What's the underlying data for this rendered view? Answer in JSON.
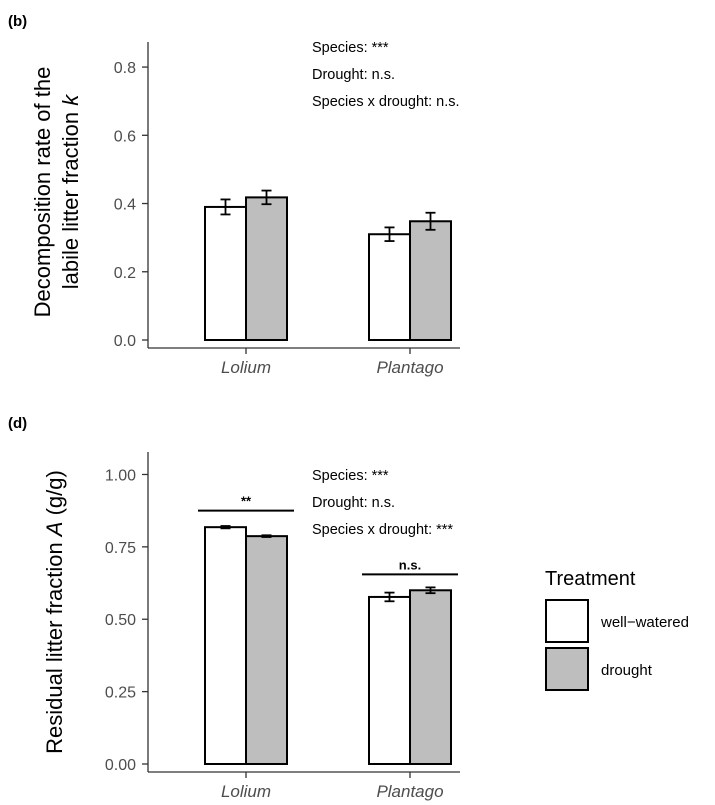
{
  "chart_data": [
    {
      "id": "b",
      "type": "bar",
      "panel_label": "(b)",
      "ylabel_main": "Decomposition rate of the",
      "ylabel_second": "labile litter fraction ",
      "ylabel_symbol": "k",
      "ylabel_unit": "",
      "xlabel": "",
      "ylim": [
        0,
        0.85
      ],
      "yticks": [
        0.0,
        0.2,
        0.4,
        0.6,
        0.8
      ],
      "ytick_labels": [
        "0.0",
        "0.2",
        "0.4",
        "0.6",
        "0.8"
      ],
      "categories": [
        "Lolium",
        "Plantago"
      ],
      "series": [
        {
          "name": "well−watered",
          "values": [
            0.39,
            0.31
          ],
          "errors": [
            0.022,
            0.02
          ]
        },
        {
          "name": "drought",
          "values": [
            0.418,
            0.348
          ],
          "errors": [
            0.02,
            0.025
          ]
        }
      ],
      "stats": [
        "Species: ***",
        "Drought: n.s.",
        "Species x drought: n.s."
      ],
      "significance": []
    },
    {
      "id": "d",
      "type": "bar",
      "panel_label": "(d)",
      "ylabel_main": "Residual litter fraction ",
      "ylabel_second": "",
      "ylabel_symbol": "A",
      "ylabel_unit": " (g/g)",
      "xlabel": "",
      "ylim": [
        0,
        1.05
      ],
      "yticks": [
        0.0,
        0.25,
        0.5,
        0.75,
        1.0
      ],
      "ytick_labels": [
        "0.00",
        "0.25",
        "0.50",
        "0.75",
        "1.00"
      ],
      "categories": [
        "Lolium",
        "Plantago"
      ],
      "series": [
        {
          "name": "well−watered",
          "values": [
            0.818,
            0.577
          ],
          "errors": [
            0.004,
            0.015
          ]
        },
        {
          "name": "drought",
          "values": [
            0.787,
            0.6
          ],
          "errors": [
            0.003,
            0.01
          ]
        }
      ],
      "stats": [
        "Species: ***",
        "Drought: n.s.",
        "Species x drought: ***"
      ],
      "significance": [
        {
          "category_index": 0,
          "label": "**",
          "y": 0.875
        },
        {
          "category_index": 1,
          "label": "n.s.",
          "y": 0.655
        }
      ]
    }
  ],
  "legend": {
    "title": "Treatment",
    "placement": "right",
    "items": [
      {
        "label": "well−watered",
        "color": "#ffffff"
      },
      {
        "label": "drought",
        "color": "#bebebe"
      }
    ]
  },
  "colors": {
    "well_watered": "#ffffff",
    "drought": "#bebebe"
  }
}
